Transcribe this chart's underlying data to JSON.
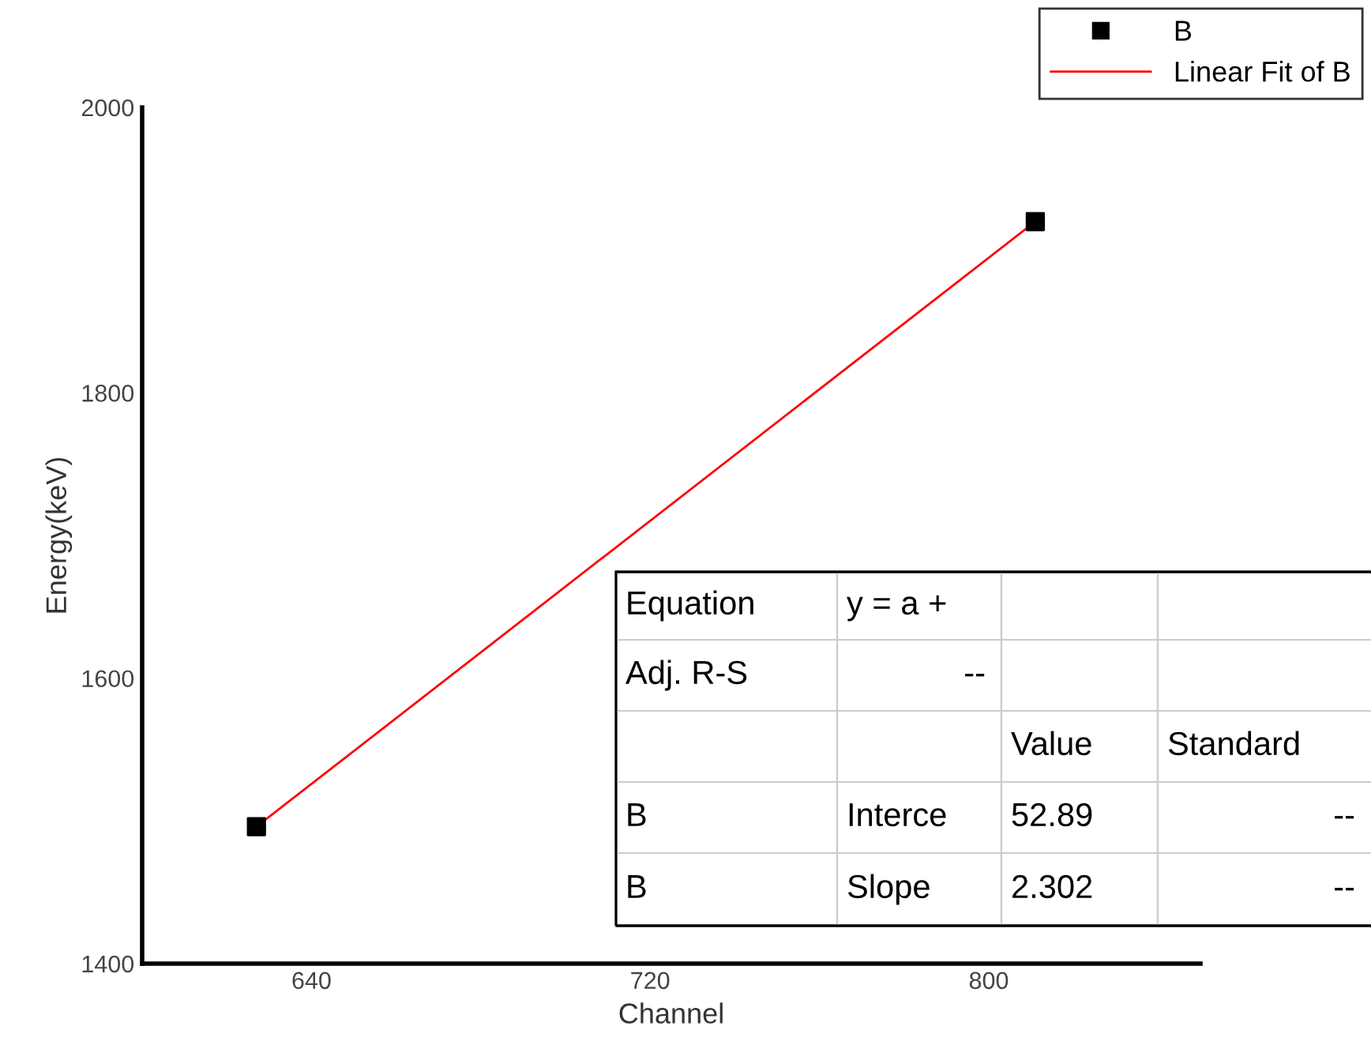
{
  "chart_data": {
    "type": "scatter",
    "xlabel": "Channel",
    "ylabel": "Energy(keV)",
    "x": [
      627,
      811
    ],
    "series": [
      {
        "name": "B",
        "color": "#000000",
        "marker": "square",
        "values": [
          1496,
          1920
        ]
      },
      {
        "name": "Linear Fit of B",
        "type": "line",
        "color": "#ff0000",
        "marker": "none",
        "x": [
          627,
          811
        ],
        "values": [
          1496,
          1920
        ]
      }
    ],
    "xlim": [
      600,
      850
    ],
    "ylim": [
      1400,
      2000
    ],
    "xticks": [
      640,
      720,
      800
    ],
    "yticks": [
      1400,
      1600,
      1800,
      2000
    ],
    "grid": false,
    "legend": "top right",
    "annotations": [
      "Equation",
      "y = a +",
      "Adj. R-S",
      "--",
      "Value",
      "Standard",
      "B",
      "Interce",
      "52.89",
      "--",
      "B",
      "Slope",
      "2.302",
      "--"
    ]
  }
}
